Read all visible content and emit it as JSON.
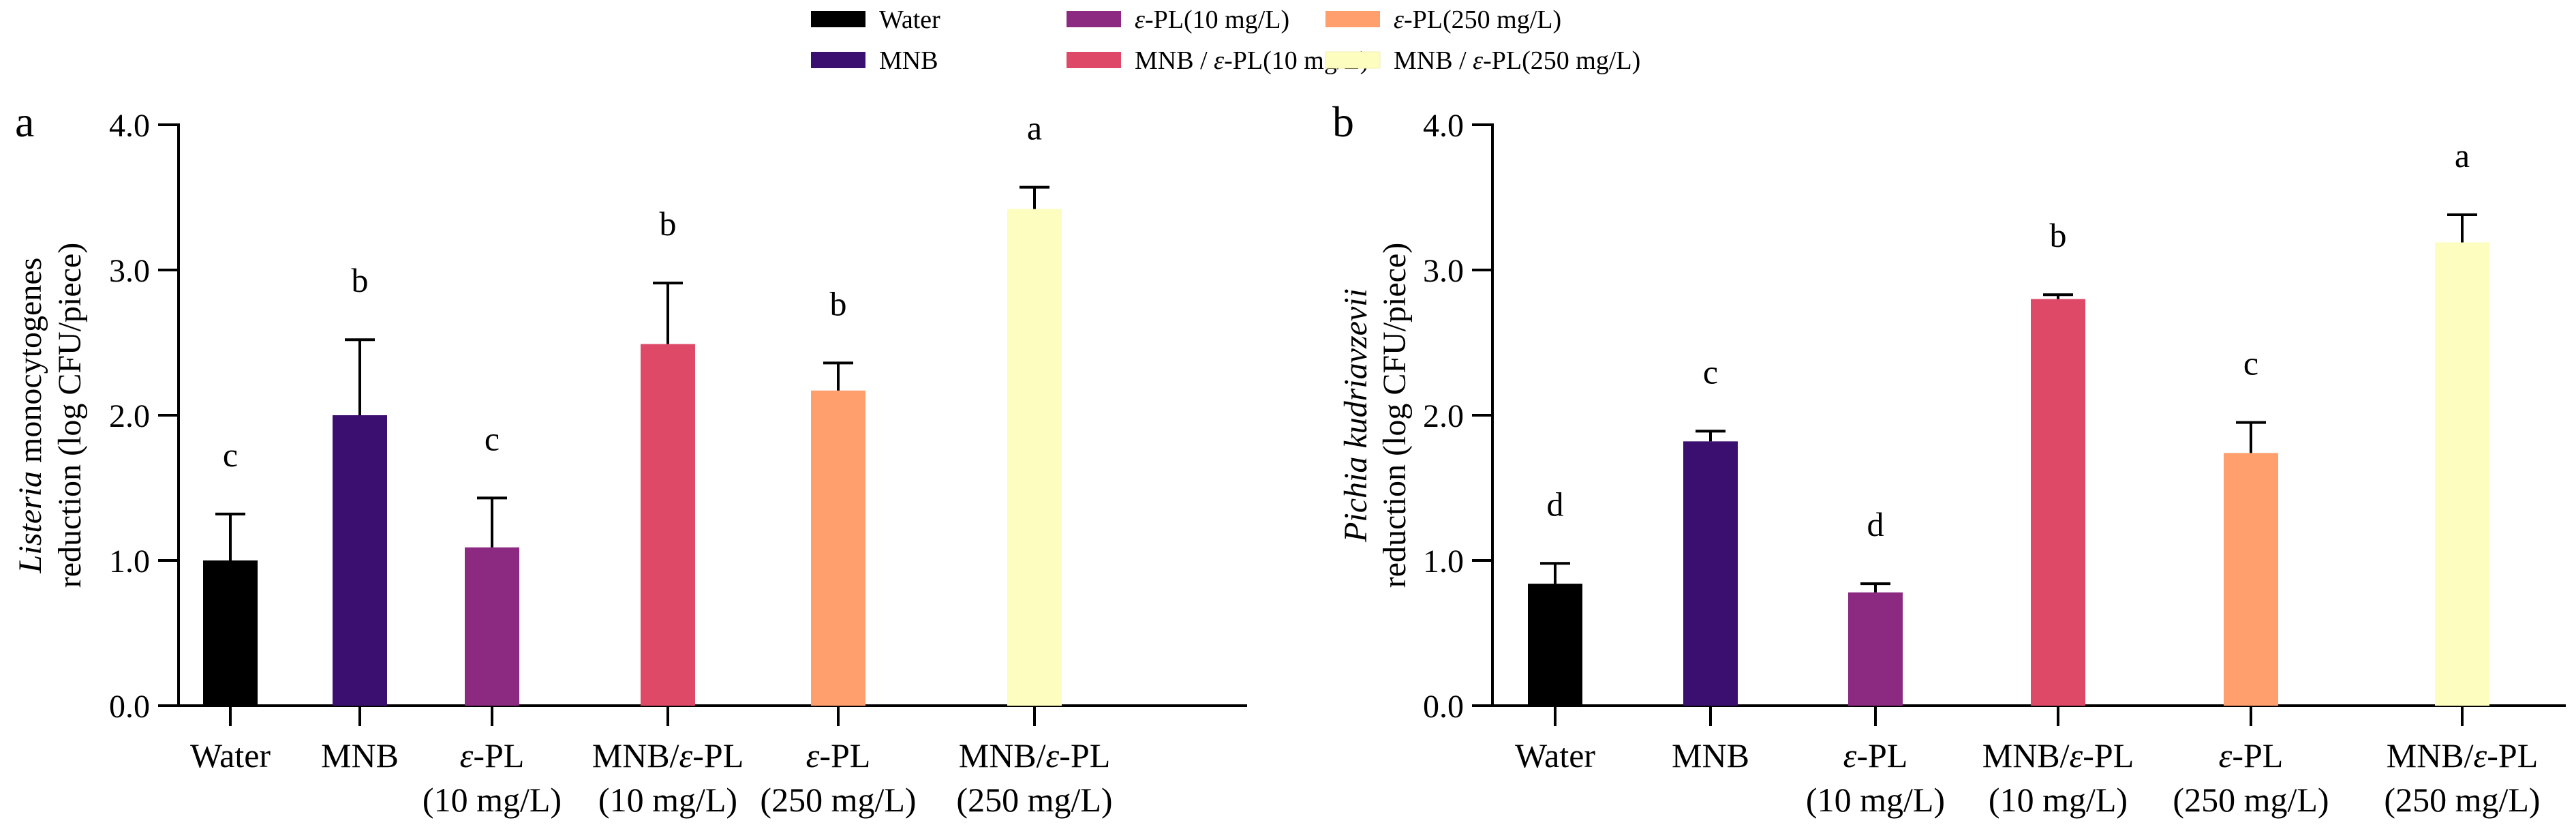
{
  "legend": {
    "placement": "top-center",
    "items": [
      {
        "label": "Water",
        "color": "#000000"
      },
      {
        "label": "MNB",
        "color": "#3b0f70"
      },
      {
        "label": "ε-PL(10 mg/L)",
        "color": "#8c2981"
      },
      {
        "label": "MNB / ε-PL(10 mg/L)",
        "color": "#de4968"
      },
      {
        "label": "ε-PL(250 mg/L)",
        "color": "#fe9f6d"
      },
      {
        "label": "MNB / ε-PL(250 mg/L)",
        "color": "#fcfdbf"
      }
    ]
  },
  "chart_data": [
    {
      "type": "bar",
      "panel_label": "a",
      "title": "",
      "ylabel_italic": "Listeria",
      "ylabel_line1_rest": " monocytogenes",
      "ylabel_line2": "reduction (log CFU/piece)",
      "xlabel": "",
      "ylim": [
        0,
        4
      ],
      "yticks": [
        "0.0",
        "1.0",
        "2.0",
        "3.0",
        "4.0"
      ],
      "grid": false,
      "categories": [
        {
          "line1": "Water",
          "line2": ""
        },
        {
          "line1": "MNB",
          "line2": ""
        },
        {
          "line1": "ε-PL",
          "line2": "(10 mg/L)"
        },
        {
          "line1": "MNB/ε-PL",
          "line2": "(10 mg/L)"
        },
        {
          "line1": "ε-PL",
          "line2": "(250 mg/L)"
        },
        {
          "line1": "MNB/ε-PL",
          "line2": "(250 mg/L)"
        }
      ],
      "values": [
        1.0,
        2.0,
        1.09,
        2.49,
        2.17,
        3.42
      ],
      "errors": [
        0.32,
        0.52,
        0.34,
        0.42,
        0.19,
        0.15
      ],
      "significance": [
        "c",
        "b",
        "c",
        "b",
        "b",
        "a"
      ]
    },
    {
      "type": "bar",
      "panel_label": "b",
      "title": "",
      "ylabel_italic": "Pichia kudriavzevii",
      "ylabel_line1_rest": "",
      "ylabel_line2": "reduction (log CFU/piece)",
      "xlabel": "",
      "ylim": [
        0,
        4
      ],
      "yticks": [
        "0.0",
        "1.0",
        "2.0",
        "3.0",
        "4.0"
      ],
      "grid": false,
      "categories": [
        {
          "line1": "Water",
          "line2": ""
        },
        {
          "line1": "MNB",
          "line2": ""
        },
        {
          "line1": "ε-PL",
          "line2": "(10 mg/L)"
        },
        {
          "line1": "MNB/ε-PL",
          "line2": "(10 mg/L)"
        },
        {
          "line1": "ε-PL",
          "line2": "(250 mg/L)"
        },
        {
          "line1": "MNB/ε-PL",
          "line2": "(250 mg/L)"
        }
      ],
      "values": [
        0.84,
        1.82,
        0.78,
        2.8,
        1.74,
        3.19
      ],
      "errors": [
        0.14,
        0.07,
        0.06,
        0.03,
        0.21,
        0.19
      ],
      "significance": [
        "d",
        "c",
        "d",
        "b",
        "c",
        "a"
      ]
    }
  ]
}
